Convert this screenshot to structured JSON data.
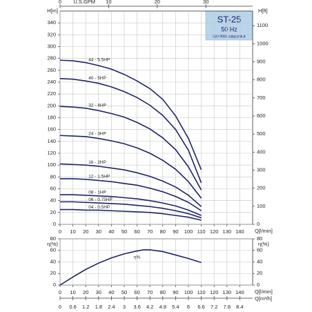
{
  "chart_data": [
    {
      "type": "line",
      "annotations": [
        "ST-25",
        "50 Hz",
        "ISO 9906 załącznik A"
      ],
      "y_label": "H[m]",
      "y2_label": "H[ft]",
      "x_label": "Q[l/min]",
      "x2_label": "U.S.GPM",
      "x": [
        0,
        10,
        20,
        30,
        40,
        50,
        60,
        70,
        80,
        90,
        100,
        110
      ],
      "series": [
        {
          "name": "44 - 5.5HP",
          "color": "#1c2266",
          "values": [
            277,
            276,
            273,
            268,
            262,
            253,
            242,
            229,
            211,
            183,
            145,
            92
          ]
        },
        {
          "name": "40 - 5HP",
          "color": "#1c2266",
          "values": [
            246,
            245,
            242,
            238,
            232,
            224,
            214,
            201,
            184,
            160,
            125,
            70
          ]
        },
        {
          "name": "32 - 4HP",
          "color": "#1c2266",
          "values": [
            199,
            198,
            196,
            192,
            187,
            181,
            172,
            161,
            146,
            126,
            97,
            58
          ]
        },
        {
          "name": "24 - 3HP",
          "color": "#1c2266",
          "values": [
            150,
            149,
            148,
            145,
            141,
            136,
            129,
            120,
            108,
            93,
            72,
            44
          ]
        },
        {
          "name": "16 - 2HP",
          "color": "#1c2266",
          "values": [
            102,
            101,
            100,
            98,
            95,
            92,
            87,
            81,
            73,
            63,
            49,
            30
          ]
        },
        {
          "name": "12 - 1.5HP",
          "color": "#1c2266",
          "values": [
            77,
            77,
            76,
            74,
            72,
            69,
            66,
            61,
            55,
            47,
            37,
            23
          ]
        },
        {
          "name": "08 - 1HP",
          "color": "#1c2266",
          "values": [
            50,
            50,
            49,
            48,
            47,
            45,
            43,
            40,
            36,
            31,
            24,
            15
          ]
        },
        {
          "name": "06 - 0.75HP",
          "color": "#1c2266",
          "values": [
            38,
            38,
            37,
            36,
            35,
            34,
            32,
            30,
            27,
            23,
            18,
            11
          ]
        },
        {
          "name": "04 - 0.5HP",
          "color": "#1c2266",
          "values": [
            25,
            25,
            24,
            24,
            23,
            22,
            21,
            20,
            18,
            15,
            12,
            7
          ]
        }
      ],
      "xlim": [
        0,
        150
      ],
      "xticks": [
        0,
        10,
        20,
        30,
        40,
        50,
        60,
        70,
        80,
        90,
        100,
        110,
        120,
        130,
        140
      ],
      "ylim": [
        0,
        360
      ],
      "yticks": [
        0,
        20,
        40,
        60,
        80,
        100,
        120,
        140,
        160,
        180,
        200,
        220,
        240,
        260,
        280,
        300,
        320,
        340
      ],
      "y2lim": [
        0,
        1181.1
      ],
      "y2ticks": [
        0,
        100,
        200,
        300,
        400,
        500,
        600,
        700,
        800,
        900,
        1000,
        1100
      ],
      "x2lim": [
        0,
        39.63
      ],
      "x2ticks": [
        0,
        10,
        20,
        30
      ],
      "x2_position": "top",
      "grid": true
    },
    {
      "type": "line",
      "y_label": "η(%)",
      "y2_label": "η(%)",
      "x_label": "Q[l/min]",
      "x2_label": "Q[m³/h]",
      "x": [
        0,
        10,
        20,
        30,
        40,
        50,
        60,
        65,
        70,
        80,
        90,
        100,
        110
      ],
      "series": [
        {
          "name": "η%",
          "color": "#1c2266",
          "values": [
            0,
            14,
            27,
            38,
            47,
            54,
            59,
            61,
            61,
            58,
            52,
            46,
            39
          ]
        }
      ],
      "xlim": [
        0,
        150
      ],
      "xticks": [
        0,
        10,
        20,
        30,
        40,
        50,
        60,
        70,
        80,
        90,
        100,
        110,
        120,
        130,
        140
      ],
      "ylim": [
        0,
        80
      ],
      "yticks": [
        0,
        20,
        40,
        60,
        80
      ],
      "y2lim": [
        0,
        80
      ],
      "y2ticks": [
        0,
        20,
        40,
        60,
        80
      ],
      "x2lim": [
        0,
        9
      ],
      "x2ticks": [
        0,
        0.6,
        1.2,
        1.8,
        2.4,
        3,
        3.6,
        4.2,
        4.8,
        5.4,
        6,
        6.6,
        7.2,
        7.8,
        8.4
      ],
      "x2_position": "bottom",
      "grid": true
    }
  ]
}
